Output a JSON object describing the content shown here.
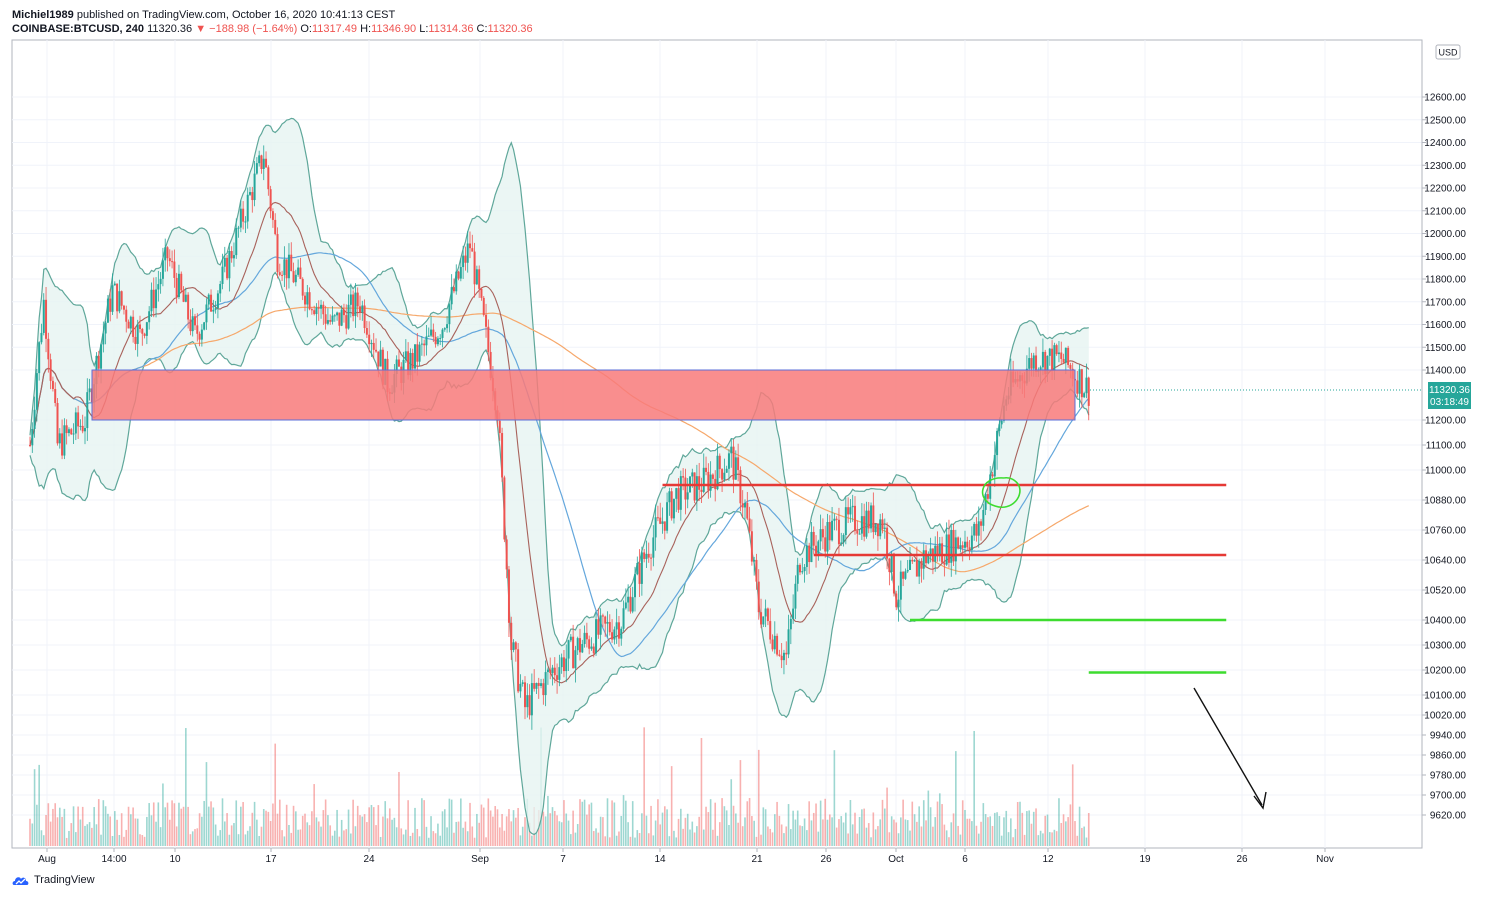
{
  "header": {
    "publisher": "Michiel1989",
    "published_text": "published on TradingView.com, October 16, 2020 10:41:13 CEST",
    "symbol": "COINBASE:BTCUSD, 240",
    "last": "11320.36",
    "change": "▼ −188.98 (−1.64%)",
    "o_label": "O:",
    "o_value": "11317.49",
    "h_label": "H:",
    "h_value": "11346.90",
    "l_label": "L:",
    "l_value": "11314.36",
    "c_label": "C:",
    "c_value": "11320.36"
  },
  "currency_badge": "USD",
  "price_tag": {
    "value": "11320.36",
    "countdown": "03:18:49"
  },
  "brand": "TradingView",
  "colors": {
    "up": "#26a69a",
    "down": "#ef5350",
    "bollinger_fill": "#e6f4f1",
    "bollinger_line": "#5fa79a",
    "ma_fast": "#a8625b",
    "ma_mid": "#64a7dc",
    "ma_slow": "#f6a86b",
    "zone": "#f87a7a",
    "resistance": "#e53935",
    "support": "#3ddc2f"
  },
  "chart_data": {
    "type": "candlestick",
    "y_axis_ticks": [
      "12600.00",
      "12500.00",
      "12400.00",
      "12300.00",
      "12200.00",
      "12100.00",
      "12000.00",
      "11900.00",
      "11800.00",
      "11700.00",
      "11600.00",
      "11500.00",
      "11400.00",
      "11200.00",
      "11100.00",
      "11000.00",
      "10880.00",
      "10760.00",
      "10640.00",
      "10520.00",
      "10400.00",
      "10300.00",
      "10200.00",
      "10100.00",
      "10020.00",
      "9940.00",
      "9860.00",
      "9780.00",
      "9700.00",
      "9620.00"
    ],
    "x_axis_ticks": [
      "Aug",
      "14:00",
      "10",
      "17",
      "24",
      "Sep",
      "7",
      "14",
      "21",
      "26",
      "Oct",
      "6",
      "12",
      "19",
      "26",
      "Nov"
    ],
    "close_path": [
      [
        "2020-07-31",
        11100
      ],
      [
        "2020-08-01",
        11700
      ],
      [
        "2020-08-02",
        11100
      ],
      [
        "2020-08-04",
        11200
      ],
      [
        "2020-08-06",
        11750
      ],
      [
        "2020-08-08",
        11550
      ],
      [
        "2020-08-10",
        11900
      ],
      [
        "2020-08-12",
        11550
      ],
      [
        "2020-08-14",
        11800
      ],
      [
        "2020-08-17",
        12350
      ],
      [
        "2020-08-18",
        11900
      ],
      [
        "2020-08-20",
        11750
      ],
      [
        "2020-08-22",
        11600
      ],
      [
        "2020-08-24",
        11700
      ],
      [
        "2020-08-26",
        11350
      ],
      [
        "2020-08-28",
        11450
      ],
      [
        "2020-08-30",
        11600
      ],
      [
        "2020-09-01",
        11950
      ],
      [
        "2020-09-03",
        11250
      ],
      [
        "2020-09-04",
        10300
      ],
      [
        "2020-09-05",
        10050
      ],
      [
        "2020-09-07",
        10200
      ],
      [
        "2020-09-09",
        10300
      ],
      [
        "2020-09-12",
        10400
      ],
      [
        "2020-09-14",
        10700
      ],
      [
        "2020-09-16",
        10900
      ],
      [
        "2020-09-18",
        10950
      ],
      [
        "2020-09-20",
        11050
      ],
      [
        "2020-09-21",
        10850
      ],
      [
        "2020-09-22",
        10450
      ],
      [
        "2020-09-24",
        10250
      ],
      [
        "2020-09-25",
        10650
      ],
      [
        "2020-09-27",
        10750
      ],
      [
        "2020-09-29",
        10800
      ],
      [
        "2020-10-01",
        10800
      ],
      [
        "2020-10-02",
        10500
      ],
      [
        "2020-10-04",
        10650
      ],
      [
        "2020-10-06",
        10700
      ],
      [
        "2020-10-08",
        10750
      ],
      [
        "2020-10-10",
        11300
      ],
      [
        "2020-10-12",
        11450
      ],
      [
        "2020-10-14",
        11450
      ],
      [
        "2020-10-16",
        11320
      ]
    ],
    "annotations": {
      "red_zone": {
        "from": 11200,
        "to": 11400,
        "start": "2020-07-31",
        "end": "2020-10-15"
      },
      "resistance_lines": [
        {
          "price": 10940,
          "start": "2020-09-15",
          "end": "2020-10-26"
        },
        {
          "price": 10660,
          "start": "2020-09-26",
          "end": "2020-10-26"
        }
      ],
      "support_lines": [
        {
          "price": 10400,
          "start": "2020-10-03",
          "end": "2020-10-26"
        },
        {
          "price": 10190,
          "start": "2020-10-16",
          "end": "2020-10-26"
        }
      ]
    }
  }
}
